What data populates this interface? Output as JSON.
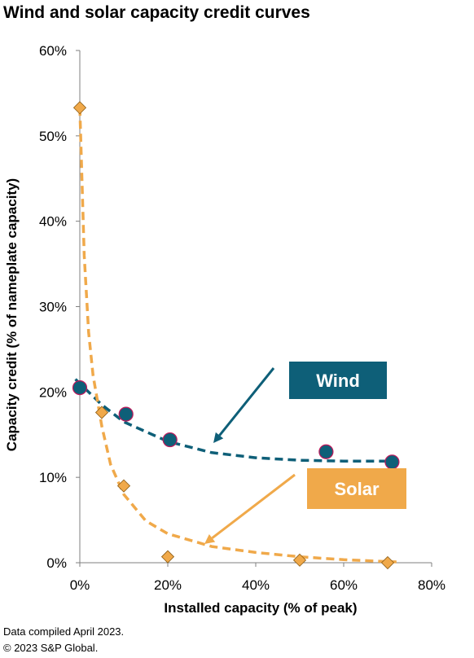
{
  "title": "Wind and solar capacity credit curves",
  "footnotes": [
    "Data compiled April 2023.",
    "© 2023 S&P Global."
  ],
  "chart_data": {
    "type": "scatter",
    "title": "Wind and solar capacity credit curves",
    "xlabel": "Installed capacity (% of peak)",
    "ylabel": "Capacity credit (% of nameplate capacity)",
    "xlim": [
      0,
      80
    ],
    "ylim": [
      0,
      60
    ],
    "xticks": [
      "0%",
      "20%",
      "40%",
      "60%",
      "80%"
    ],
    "xtick_values": [
      0,
      20,
      40,
      60,
      80
    ],
    "yticks": [
      "0%",
      "10%",
      "20%",
      "30%",
      "40%",
      "50%",
      "60%"
    ],
    "ytick_values": [
      0,
      10,
      20,
      30,
      40,
      50,
      60
    ],
    "grid": false,
    "series": [
      {
        "name": "Wind",
        "color": "#0e5f78",
        "marker": "circle",
        "points": [
          [
            0,
            20.5
          ],
          [
            10.5,
            17.4
          ],
          [
            20.5,
            14.4
          ],
          [
            56,
            13.0
          ],
          [
            71,
            11.8
          ]
        ],
        "trend": [
          [
            -1,
            21.5
          ],
          [
            5,
            18.5
          ],
          [
            10,
            16.5
          ],
          [
            20,
            14.2
          ],
          [
            30,
            12.9
          ],
          [
            40,
            12.3
          ],
          [
            50,
            12.0
          ],
          [
            60,
            11.9
          ],
          [
            72,
            11.9
          ]
        ]
      },
      {
        "name": "Solar",
        "color": "#f0a94a",
        "marker": "diamond",
        "points": [
          [
            0,
            53.3
          ],
          [
            5,
            17.6
          ],
          [
            10,
            9.0
          ],
          [
            20,
            0.7
          ],
          [
            50,
            0.3
          ],
          [
            70,
            0.0
          ]
        ],
        "trend": [
          [
            0,
            53.3
          ],
          [
            1,
            36
          ],
          [
            2,
            27
          ],
          [
            3,
            22
          ],
          [
            5,
            16
          ],
          [
            7,
            11.5
          ],
          [
            10,
            8
          ],
          [
            15,
            4.9
          ],
          [
            20,
            3.4
          ],
          [
            30,
            1.9
          ],
          [
            40,
            1.2
          ],
          [
            50,
            0.7
          ],
          [
            60,
            0.35
          ],
          [
            72,
            0.1
          ]
        ]
      }
    ],
    "annotations": [
      {
        "label": "Wind",
        "series": 0
      },
      {
        "label": "Solar",
        "series": 1
      }
    ]
  }
}
